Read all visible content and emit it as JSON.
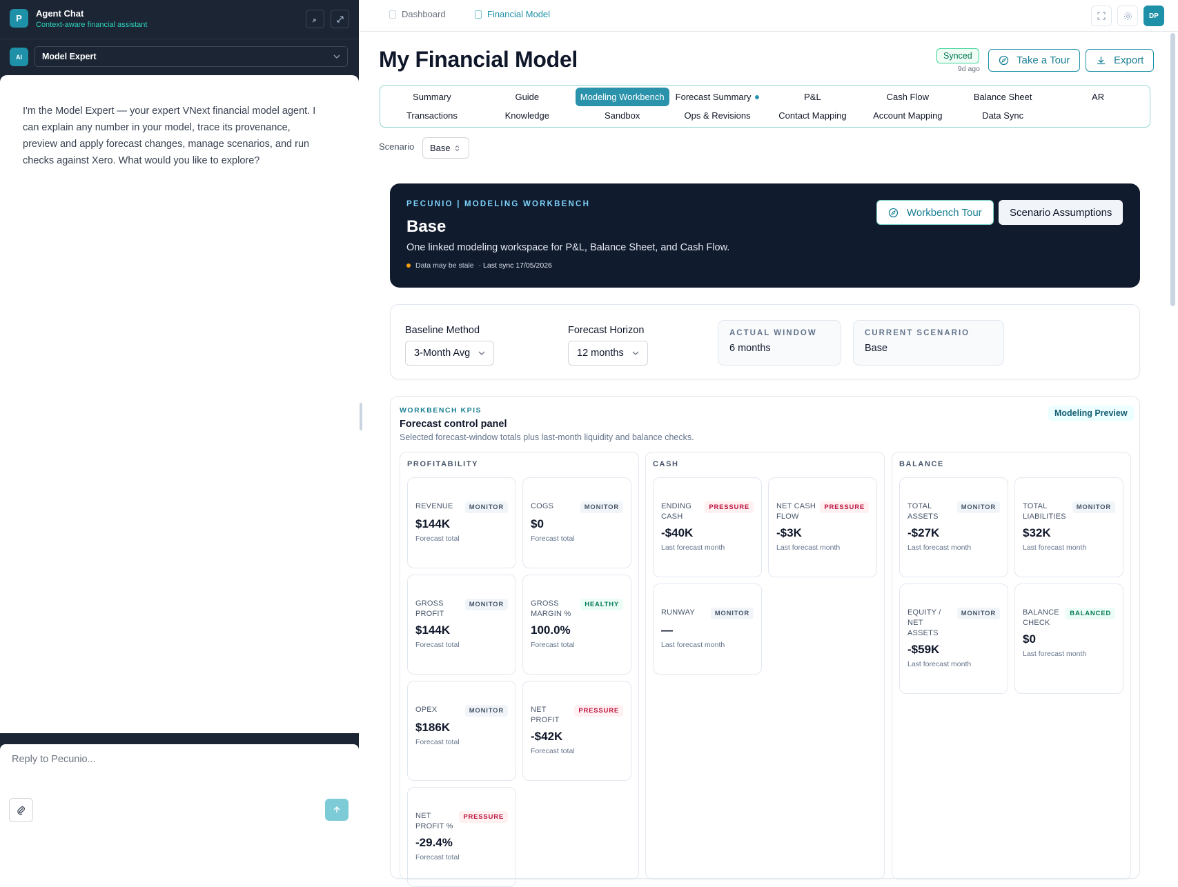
{
  "sidebar": {
    "avatar": "P",
    "title": "Agent Chat",
    "subtitle": "Context-aware financial assistant",
    "agent_badge": "AI",
    "agent": "Model Expert",
    "message": "I'm the Model Expert — your expert VNext financial model agent. I can explain any number in your model, trace its provenance, preview and apply forecast changes, manage scenarios, and run checks against Xero. What would you like to explore?",
    "input_placeholder": "Reply to Pecunio..."
  },
  "topnav": {
    "tabs": [
      {
        "label": "Dashboard",
        "active": false
      },
      {
        "label": "Financial Model",
        "active": true
      }
    ],
    "user": "DP"
  },
  "header": {
    "title": "My Financial Model",
    "status": "Synced",
    "status_time": "9d ago",
    "buttons": [
      "Take a Tour",
      "Export"
    ]
  },
  "tabs": {
    "rows": [
      [
        {
          "label": "Summary"
        },
        {
          "label": "Guide"
        },
        {
          "label": "Modeling Workbench",
          "active": true
        },
        {
          "label": "Forecast Summary",
          "dot": true
        },
        {
          "label": "P&L"
        },
        {
          "label": "Cash Flow"
        },
        {
          "label": "Balance Sheet"
        },
        {
          "label": "AR"
        }
      ],
      [
        {
          "label": "Transactions"
        },
        {
          "label": "Knowledge"
        },
        {
          "label": "Sandbox"
        },
        {
          "label": "Ops & Revisions"
        },
        {
          "label": "Contact Mapping"
        },
        {
          "label": "Account Mapping"
        },
        {
          "label": "Data Sync"
        }
      ]
    ]
  },
  "scenario": {
    "label": "Scenario",
    "value": "Base"
  },
  "banner": {
    "eyebrow": "PECUNIO | MODELING WORKBENCH",
    "title": "Base",
    "description": "One linked modeling workspace for P&L, Balance Sheet, and Cash Flow.",
    "stale": "Data may be stale",
    "sync": "· Last sync 17/05/2026",
    "buttons": [
      "Workbench Tour",
      "Scenario Assumptions"
    ]
  },
  "controls": {
    "selects": [
      {
        "label": "Baseline Method",
        "value": "3-Month Avg"
      },
      {
        "label": "Forecast Horizon",
        "value": "12 months"
      }
    ],
    "info": [
      {
        "label": "ACTUAL WINDOW",
        "value": "6 months"
      },
      {
        "label": "CURRENT SCENARIO",
        "value": "Base"
      }
    ]
  },
  "kpis": {
    "eyebrow": "WORKBENCH KPIS",
    "title": "Forecast control panel",
    "subtitle": "Selected forecast-window totals plus last-month liquidity and balance checks.",
    "badge": "Modeling Preview",
    "status_styles": {
      "MONITOR": {
        "color": "#475569",
        "background": "#f1f5f9"
      },
      "PRESSURE": {
        "color": "#be123c",
        "background": "#fff1f2"
      },
      "HEALTHY": {
        "color": "#047857",
        "background": "#ecfdf5"
      },
      "BALANCED": {
        "color": "#047857",
        "background": "#ecfdf5"
      }
    },
    "groups": [
      {
        "name": "PROFITABILITY",
        "cards": [
          {
            "label": "REVENUE",
            "status": "MONITOR",
            "value": "$144K",
            "note": "Forecast total"
          },
          {
            "label": "COGS",
            "status": "MONITOR",
            "value": "$0",
            "note": "Forecast total"
          },
          {
            "label": "GROSS PROFIT",
            "status": "MONITOR",
            "value": "$144K",
            "note": "Forecast total"
          },
          {
            "label": "GROSS MARGIN %",
            "status": "HEALTHY",
            "value": "100.0%",
            "note": "Forecast total"
          },
          {
            "label": "OPEX",
            "status": "MONITOR",
            "value": "$186K",
            "note": "Forecast total"
          },
          {
            "label": "NET PROFIT",
            "status": "PRESSURE",
            "value": "-$42K",
            "note": "Forecast total"
          },
          {
            "label": "NET PROFIT %",
            "status": "PRESSURE",
            "value": "-29.4%",
            "note": "Forecast total"
          }
        ]
      },
      {
        "name": "CASH",
        "cards": [
          {
            "label": "ENDING CASH",
            "status": "PRESSURE",
            "value": "-$40K",
            "note": "Last forecast month"
          },
          {
            "label": "NET CASH FLOW",
            "status": "PRESSURE",
            "value": "-$3K",
            "note": "Last forecast month"
          },
          {
            "label": "RUNWAY",
            "status": "MONITOR",
            "value": "—",
            "note": "Last forecast month"
          }
        ]
      },
      {
        "name": "BALANCE",
        "cards": [
          {
            "label": "TOTAL ASSETS",
            "status": "MONITOR",
            "value": "-$27K",
            "note": "Last forecast month"
          },
          {
            "label": "TOTAL LIABILITIES",
            "status": "MONITOR",
            "value": "$32K",
            "note": "Last forecast month"
          },
          {
            "label": "EQUITY / NET ASSETS",
            "status": "MONITOR",
            "value": "-$59K",
            "note": "Last forecast month"
          },
          {
            "label": "BALANCE CHECK",
            "status": "BALANCED",
            "value": "$0",
            "note": "Last forecast month"
          }
        ]
      }
    ]
  }
}
